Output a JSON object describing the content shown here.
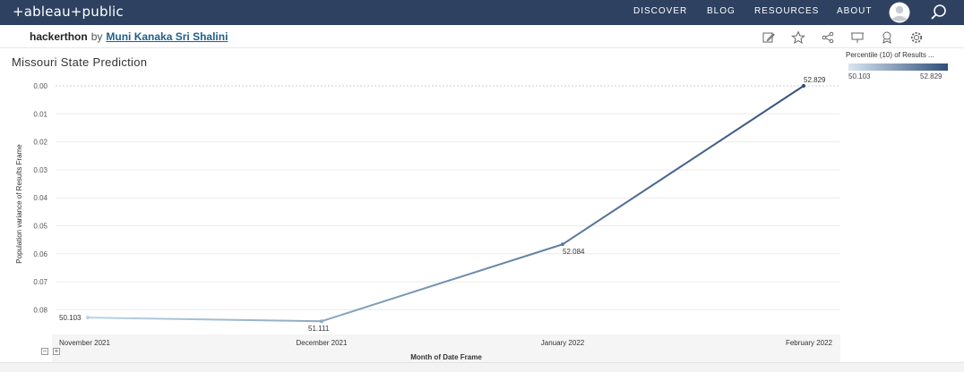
{
  "topbar": {
    "logo": "+ableau+public",
    "nav": [
      "DISCOVER",
      "BLOG",
      "RESOURCES",
      "ABOUT"
    ]
  },
  "workbook": {
    "title": "hackerthon",
    "by": "by",
    "author": "Muni Kanaka Sri Shalini"
  },
  "colors": {
    "topbar": "#2e4160",
    "line_start": "#b9d3e8",
    "line_end": "#2f4e7a"
  },
  "chart_data": {
    "type": "line",
    "title": "Missouri State Prediction",
    "xlabel": "Month of Date Frame",
    "ylabel": "Population variance of Results Frame",
    "categories": [
      "November 2021",
      "December 2021",
      "January 2022",
      "February 2022"
    ],
    "yticks": [
      "0.00",
      "0.01",
      "0.02",
      "0.03",
      "0.04",
      "0.05",
      "0.06",
      "0.07",
      "0.08"
    ],
    "ylim": [
      0,
      0.09
    ],
    "y_reversed": true,
    "series": [
      {
        "values": [
          0.0828,
          0.0841,
          0.0566,
          0.0
        ],
        "labels": [
          "50.103",
          "51.111",
          "52.084",
          "52.829"
        ]
      }
    ],
    "legend": {
      "title": "Percentile (10) of Results ...",
      "min": "50.103",
      "max": "52.829",
      "position": "top-right"
    },
    "grid": true
  }
}
